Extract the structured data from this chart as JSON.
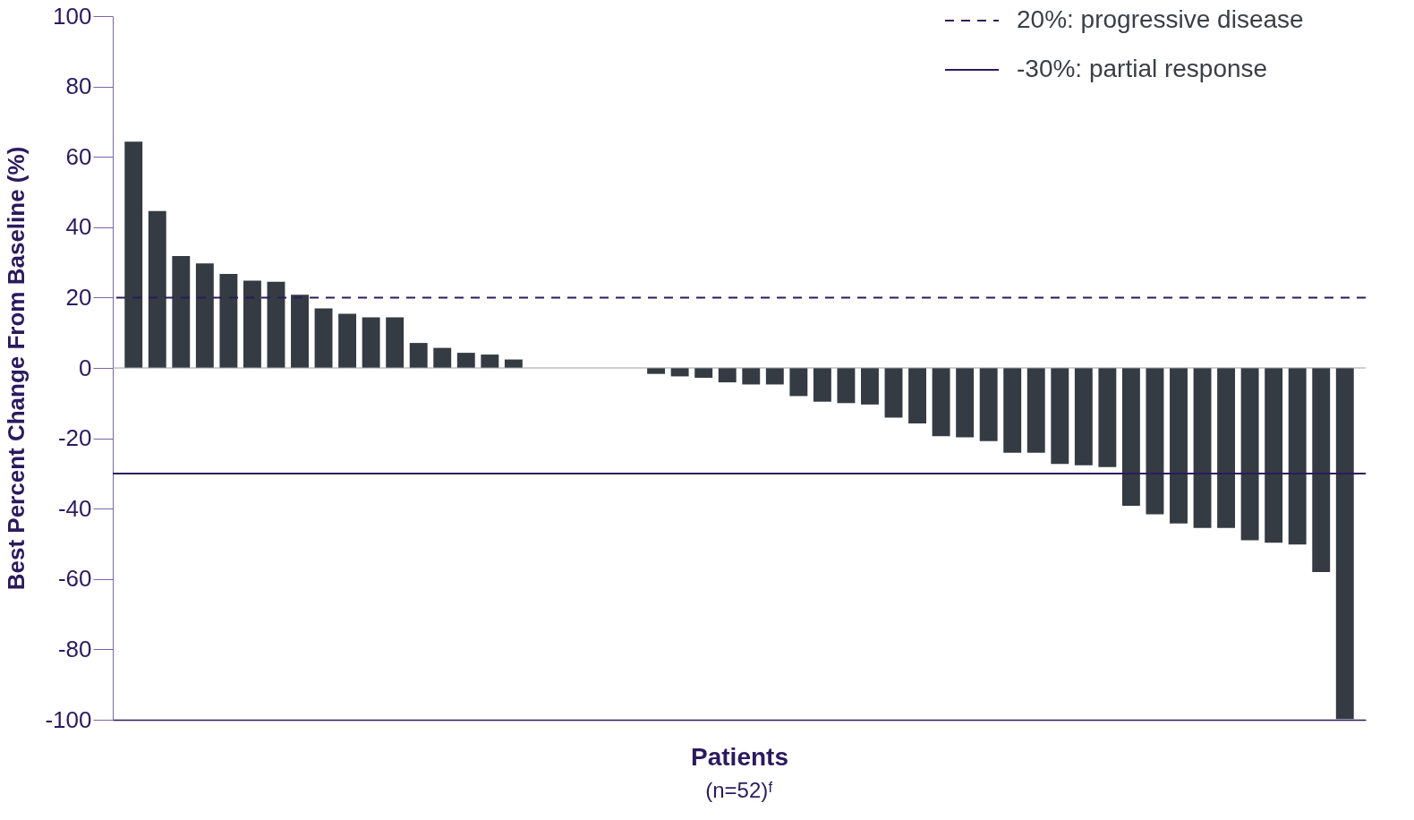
{
  "chart_data": {
    "type": "bar",
    "ylabel": "Best Percent Change From Baseline (%)",
    "xlabel": "Patients",
    "annotations": [
      "(n=52)ᶠ"
    ],
    "categories": [
      null,
      null,
      null,
      null,
      null,
      null,
      null,
      null,
      null,
      null,
      null,
      null,
      null,
      null,
      null,
      null,
      null,
      null,
      null,
      null,
      null,
      null,
      null,
      null,
      null,
      null,
      null,
      null,
      null,
      null,
      null,
      null,
      null,
      null,
      null,
      null,
      null,
      null,
      null,
      null,
      null,
      null,
      null,
      null,
      null,
      null,
      null,
      null,
      null,
      null,
      null,
      null
    ],
    "values": [
      64.3,
      44.6,
      31.8,
      29.7,
      26.7,
      24.8,
      24.5,
      20.8,
      16.9,
      15.4,
      14.4,
      14.4,
      7.1,
      5.7,
      4.3,
      3.8,
      2.4,
      0,
      0,
      0,
      0,
      0,
      -1.7,
      -2.4,
      -2.8,
      -4.1,
      -4.7,
      -4.7,
      -8.0,
      -9.6,
      -10.0,
      -10.4,
      -14.1,
      -15.8,
      -19.4,
      -19.7,
      -20.8,
      -24.1,
      -24.1,
      -27.3,
      -27.7,
      -28.2,
      -39.2,
      -41.6,
      -44.2,
      -45.5,
      -45.5,
      -49.0,
      -49.7,
      -50.2,
      -58.0,
      -99.8
    ],
    "color": "#343b42",
    "ylim": [
      -100,
      100
    ],
    "yticks": [
      -100,
      -80,
      -60,
      -40,
      -20,
      0,
      20,
      40,
      60,
      80,
      100
    ],
    "tick_labels": "y",
    "grid": false,
    "legend": "top right",
    "ref_lines": [
      {
        "axis": "y",
        "value": 20,
        "label": "20%: progressive disease",
        "color": "#2d1a5e",
        "line_style": "dashed"
      },
      {
        "axis": "y",
        "value": -30,
        "label": "-30%: partial response",
        "color": "#2d1a5e",
        "line_style": "solid"
      },
      {
        "axis": "y",
        "value": 0,
        "color": "#9aa0a6",
        "line_style": "solid"
      }
    ]
  }
}
